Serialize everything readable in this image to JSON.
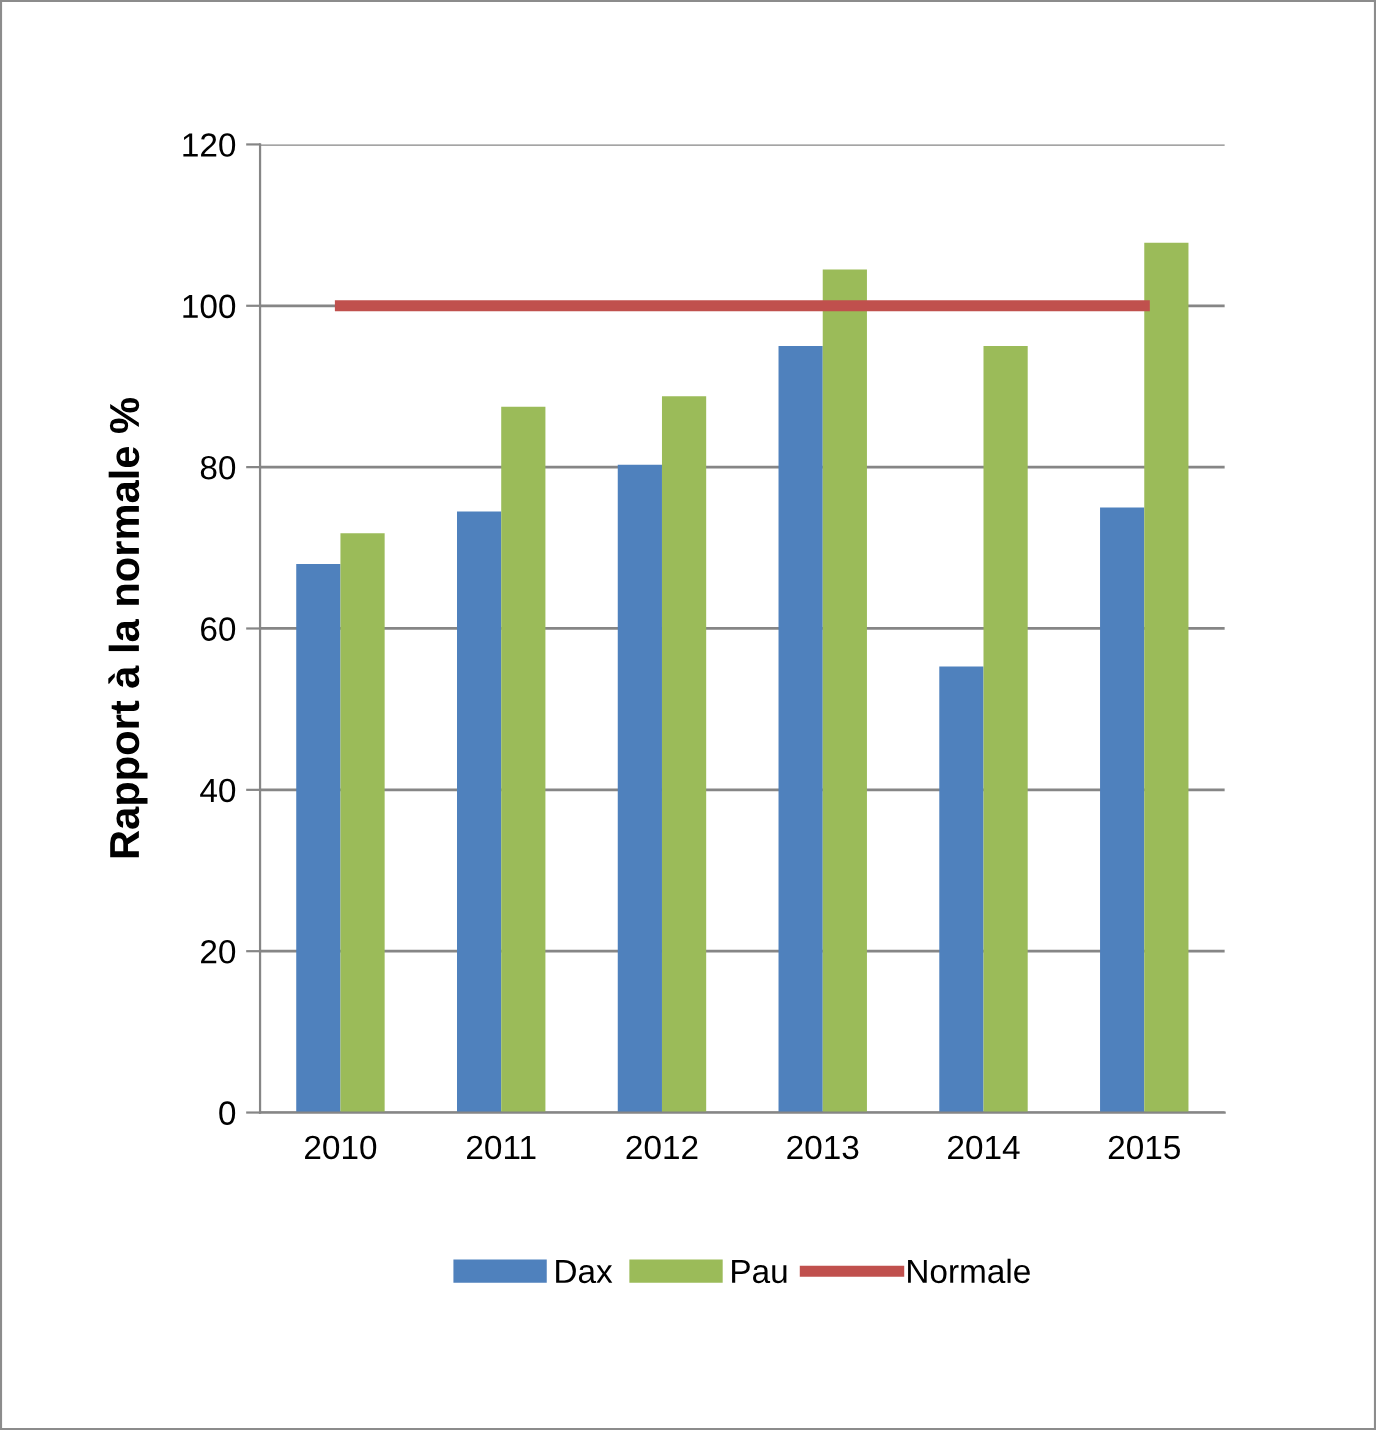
{
  "chart_data": {
    "type": "bar",
    "ylabel": "Rapport à la normale %",
    "categories": [
      "2010",
      "2011",
      "2012",
      "2013",
      "2014",
      "2015"
    ],
    "series": [
      {
        "name": "Dax",
        "color": "#4f81bd",
        "values": [
          68,
          74.5,
          80.3,
          95,
          55.3,
          75
        ]
      },
      {
        "name": "Pau",
        "color": "#9bbb59",
        "values": [
          71.8,
          87.5,
          88.8,
          104.5,
          95,
          107.8
        ]
      },
      {
        "name": "Normale",
        "type": "line",
        "color": "#c0504d",
        "values": [
          100,
          100,
          100,
          100,
          100,
          100
        ]
      }
    ],
    "ylim": [
      0,
      120
    ],
    "yticks": [
      0,
      20,
      40,
      60,
      80,
      100,
      120
    ],
    "grid": "y",
    "legend": "bottom"
  }
}
